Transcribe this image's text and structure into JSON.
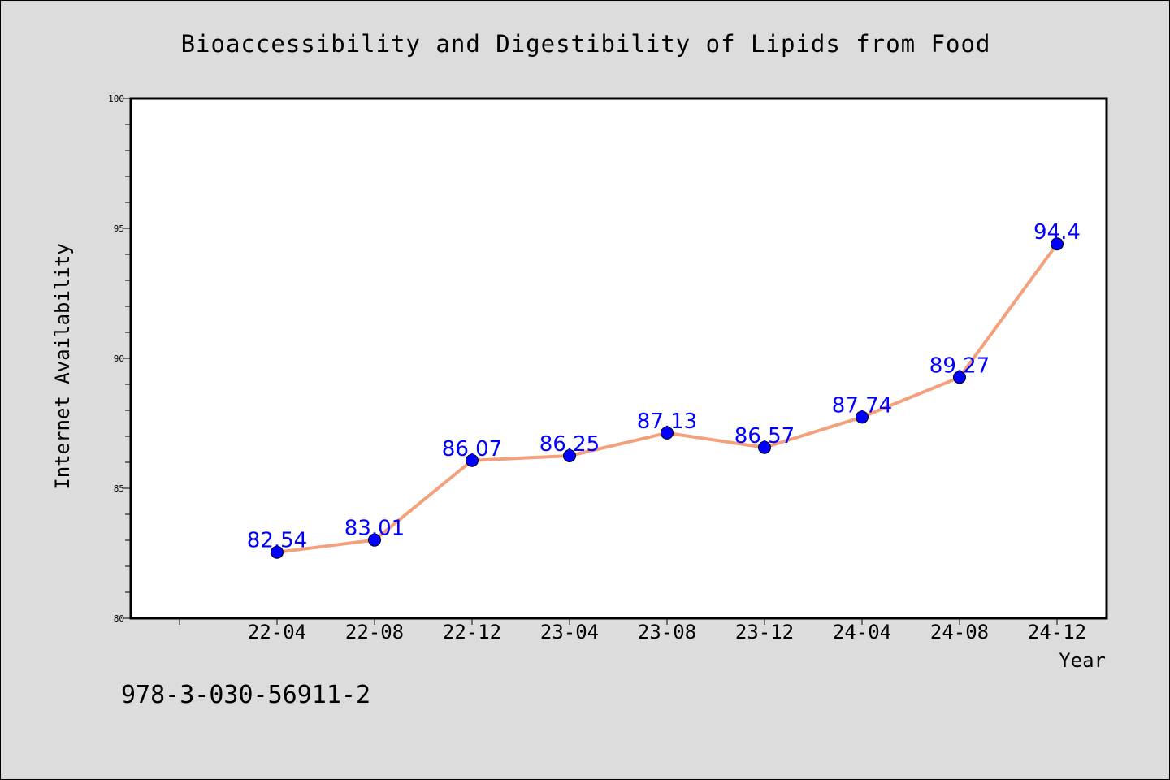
{
  "chart_data": {
    "type": "line",
    "title": "Bioaccessibility and Digestibility of Lipids from Food",
    "xlabel": "Year",
    "ylabel": "Internet Availability",
    "categories": [
      "22-04",
      "22-08",
      "22-12",
      "23-04",
      "23-08",
      "23-12",
      "24-04",
      "24-08",
      "24-12"
    ],
    "values": [
      82.54,
      83.01,
      86.07,
      86.25,
      87.13,
      86.57,
      87.74,
      89.27,
      94.4
    ],
    "data_labels": [
      "82.54",
      "83.01",
      "86.07",
      "86.25",
      "87.13",
      "86.57",
      "87.74",
      "89.27",
      "94.4"
    ],
    "ylim": [
      80,
      100
    ],
    "yticks": [
      "80",
      "85",
      "90",
      "95",
      "100"
    ],
    "grid": false,
    "legend": "none",
    "line_color": "#f4a07c",
    "marker_color": "#0000ff",
    "label_color": "#0000ff"
  },
  "footer": {
    "isbn": "978-3-030-56911-2"
  },
  "colors": {
    "background": "#dcdcdc",
    "plot_area": "#ffffff"
  }
}
